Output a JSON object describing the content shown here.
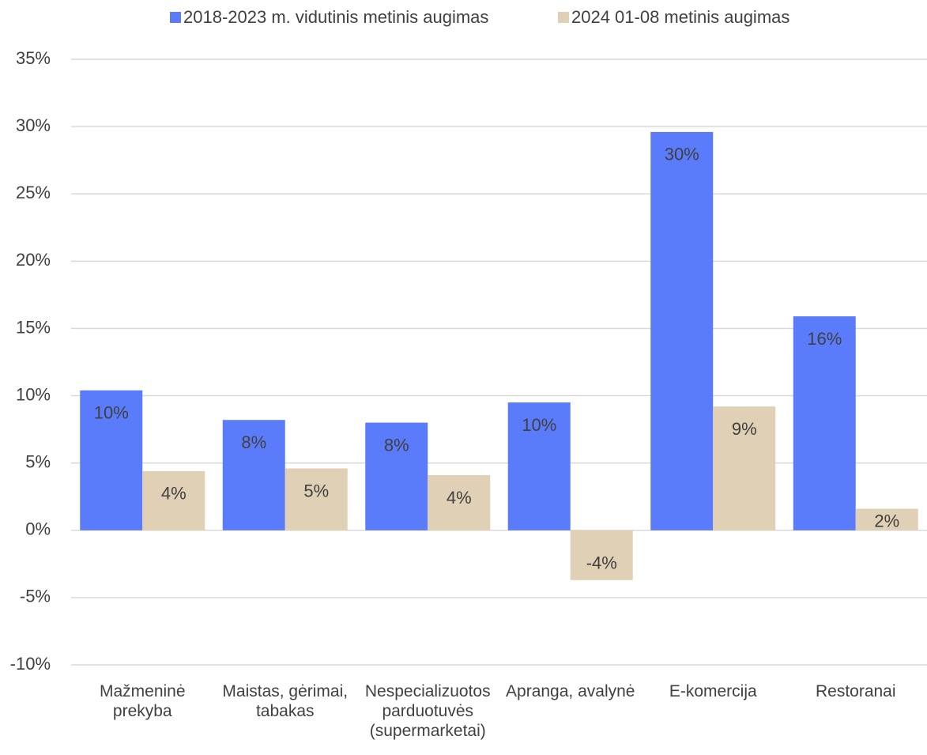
{
  "chart_data": {
    "type": "bar",
    "categories": [
      "Mažmeninė prekyba",
      "Maistas, gėrimai, tabakas",
      "Nespecializuotos parduotuvės (supermarketai)",
      "Apranga, avalynė",
      "E-komercija",
      "Restoranai"
    ],
    "series": [
      {
        "name": "2018-2023 m. vidutinis metinis augimas",
        "color": "#5b7cfa",
        "values": [
          10.4,
          8.2,
          8.0,
          9.5,
          29.6,
          15.9
        ],
        "value_labels": [
          "10%",
          "8%",
          "8%",
          "10%",
          "30%",
          "16%"
        ]
      },
      {
        "name": "2024 01-08 metinis augimas",
        "color": "#e0d0b5",
        "values": [
          4.4,
          4.6,
          4.1,
          -3.7,
          9.2,
          1.6
        ],
        "value_labels": [
          "4%",
          "5%",
          "4%",
          "-4%",
          "9%",
          "2%"
        ]
      }
    ],
    "ylim": [
      -10,
      35
    ],
    "yticks": [
      {
        "value": -10,
        "label": "-10%"
      },
      {
        "value": -5,
        "label": "-5%"
      },
      {
        "value": 0,
        "label": "0%"
      },
      {
        "value": 5,
        "label": "5%"
      },
      {
        "value": 10,
        "label": "10%"
      },
      {
        "value": 15,
        "label": "15%"
      },
      {
        "value": 20,
        "label": "20%"
      },
      {
        "value": 25,
        "label": "25%"
      },
      {
        "value": 30,
        "label": "30%"
      },
      {
        "value": 35,
        "label": "35%"
      }
    ],
    "grid": true,
    "legend": "top"
  }
}
